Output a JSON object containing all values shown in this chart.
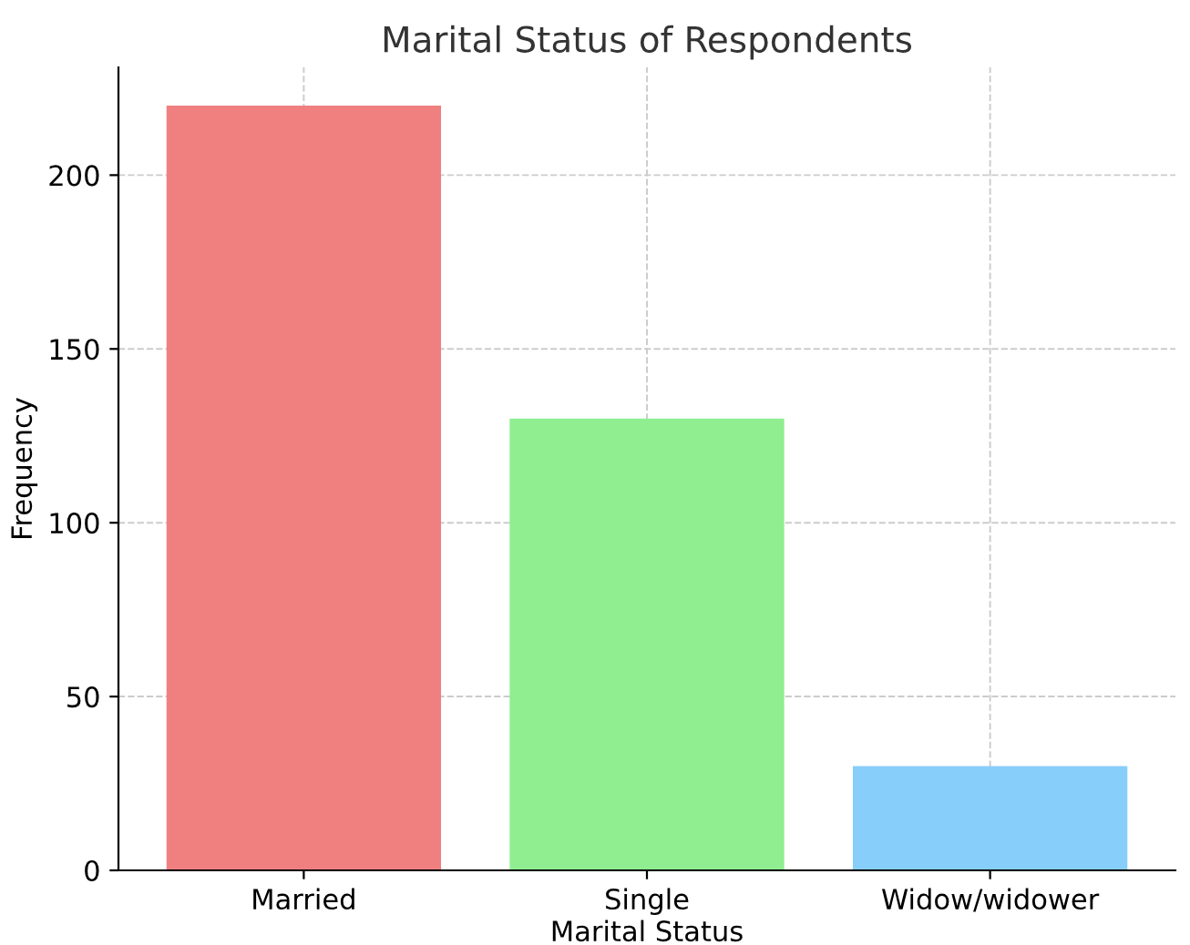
{
  "chart_data": {
    "type": "bar",
    "title": "Marital Status of Respondents",
    "xlabel": "Marital Status",
    "ylabel": "Frequency",
    "categories": [
      "Married",
      "Single",
      "Widow/widower"
    ],
    "values": [
      220,
      130,
      30
    ],
    "colors": [
      "#f08080",
      "#90ee90",
      "#87cefa"
    ],
    "ylim": [
      0,
      231
    ],
    "yticks": [
      0,
      50,
      100,
      150,
      200
    ],
    "grid": true
  }
}
